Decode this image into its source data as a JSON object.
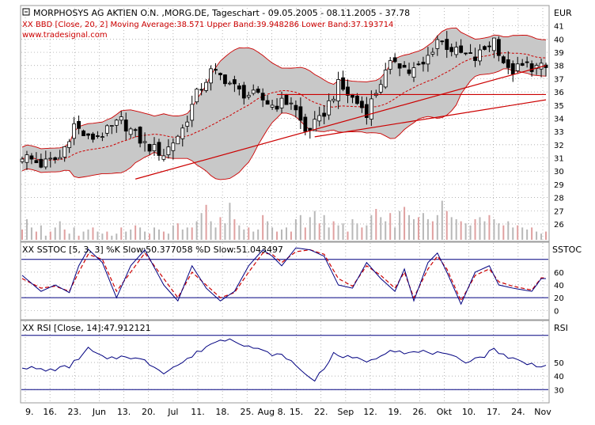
{
  "header": {
    "main_title": "MORPHOSYS AG AKTIEN O.N. ,MORG.DE, Tageschart - 09.05.2005 - 08.11.2005 - 37.78",
    "bb_info": "XX BBD [Close, 20, 2] Moving Average:38.571 Upper Band:39.948286 Lower Band:37.193714",
    "site": "www.tradesignal.com"
  },
  "labels": {
    "currency": "EUR",
    "sstoc": "SSTOC",
    "rsi": "RSI"
  },
  "colors": {
    "band_fill": "#c8c8c8",
    "ma": "#cc0000",
    "trendline": "#cc0000",
    "k_line": "#000080",
    "d_line": "#cc0000",
    "rsi_line": "#000080",
    "grid": "#9a9a9a"
  },
  "chart_data": [
    {
      "type": "candlestick",
      "panel": "price",
      "title": "MORPHOSYS AG AKTIEN O.N. ,MORG.DE, Tageschart - 09.05.2005 - 08.11.2005 - 37.78",
      "ylabel": "EUR",
      "ylim": [
        24.8,
        42.3
      ],
      "yticks": [
        26,
        27,
        28,
        29,
        30,
        31,
        32,
        33,
        34,
        35,
        36,
        37,
        38,
        39,
        40,
        41
      ],
      "x_categories": [
        "9.",
        "16.",
        "23.",
        "Jun",
        "13.",
        "20.",
        "Jul",
        "11.",
        "18.",
        "25.",
        "Aug 8.",
        "15.",
        "22.",
        "Sep",
        "12.",
        "19.",
        "26.",
        "Okt",
        "10.",
        "17.",
        "24.",
        "Nov"
      ],
      "close_anchors": [
        [
          0,
          31.2
        ],
        [
          4,
          30.5
        ],
        [
          8,
          31.0
        ],
        [
          11,
          33.5
        ],
        [
          14,
          32.4
        ],
        [
          18,
          33.0
        ],
        [
          21,
          33.8
        ],
        [
          26,
          32.0
        ],
        [
          30,
          31.3
        ],
        [
          34,
          33.2
        ],
        [
          37,
          35.8
        ],
        [
          40,
          37.5
        ],
        [
          43,
          37.0
        ],
        [
          46,
          36.0
        ],
        [
          50,
          35.6
        ],
        [
          53,
          35.0
        ],
        [
          57,
          35.3
        ],
        [
          60,
          33.0
        ],
        [
          63,
          33.8
        ],
        [
          67,
          36.5
        ],
        [
          70,
          35.5
        ],
        [
          73,
          34.5
        ],
        [
          76,
          36.8
        ],
        [
          79,
          38.5
        ],
        [
          82,
          37.5
        ],
        [
          85,
          38.0
        ],
        [
          88,
          40.0
        ],
        [
          92,
          39.0
        ],
        [
          96,
          38.5
        ],
        [
          100,
          40.0
        ],
        [
          103,
          37.5
        ],
        [
          107,
          38.0
        ],
        [
          110,
          37.78
        ]
      ],
      "bollinger": {
        "period": 20,
        "stddev": 2,
        "moving_average": 38.571,
        "upper_band": 39.948286,
        "lower_band": 37.193714
      },
      "trendlines": [
        {
          "from": [
            24,
            29.4
          ],
          "to": [
            111,
            38.0
          ]
        },
        {
          "from": [
            62,
            32.6
          ],
          "to": [
            111,
            35.4
          ]
        },
        {
          "from": [
            54,
            35.8
          ],
          "to": [
            111,
            35.8
          ]
        }
      ],
      "volume_relative": [
        0.25,
        0.5,
        0.3,
        0.2,
        0.35,
        0.1,
        0.2,
        0.3,
        0.45,
        0.25,
        0.15,
        0.3,
        0.1,
        0.2,
        0.25,
        0.3,
        0.2,
        0.15,
        0.2,
        0.1,
        0.15,
        0.3,
        0.2,
        0.25,
        0.35,
        0.3,
        0.2,
        0.15,
        0.3,
        0.25,
        0.2,
        0.15,
        0.35,
        0.4,
        0.25,
        0.3,
        0.3,
        0.45,
        0.65,
        0.85,
        0.45,
        0.3,
        0.55,
        0.4,
        0.9,
        0.5,
        0.35,
        0.25,
        0.3,
        0.2,
        0.25,
        0.6,
        0.45,
        0.3,
        0.2,
        0.25,
        0.3,
        0.2,
        0.5,
        0.6,
        0.3,
        0.55,
        0.7,
        0.4,
        0.6,
        0.3,
        0.45,
        0.35,
        0.4,
        0.2,
        0.5,
        0.4,
        0.3,
        0.35,
        0.6,
        0.75,
        0.55,
        0.45,
        0.65,
        0.3,
        0.7,
        0.8,
        0.6,
        0.5,
        0.55,
        0.65,
        0.5,
        0.45,
        0.6,
        0.95,
        0.7,
        0.55,
        0.5,
        0.45,
        0.4,
        0.35,
        0.5,
        0.55,
        0.45,
        0.6,
        0.5,
        0.4,
        0.35,
        0.45,
        0.3,
        0.35,
        0.3,
        0.25,
        0.3,
        0.2,
        0.15,
        0.2
      ]
    },
    {
      "type": "line",
      "panel": "sstoc",
      "title": "XX SSTOC [5, 3, 3] %K Slow:50.377058 %D Slow:51.043497",
      "ylabel": "SSTOC",
      "ylim": [
        -12,
        102
      ],
      "yticks": [
        0,
        20,
        40,
        60
      ],
      "levels": [
        20,
        80
      ],
      "series": [
        {
          "name": "%K Slow",
          "last": 50.377058,
          "anchors": [
            [
              0,
              55
            ],
            [
              4,
              30
            ],
            [
              7,
              40
            ],
            [
              10,
              28
            ],
            [
              12,
              70
            ],
            [
              14,
              96
            ],
            [
              17,
              75
            ],
            [
              20,
              20
            ],
            [
              23,
              70
            ],
            [
              26,
              95
            ],
            [
              30,
              40
            ],
            [
              33,
              15
            ],
            [
              36,
              70
            ],
            [
              39,
              35
            ],
            [
              42,
              15
            ],
            [
              45,
              30
            ],
            [
              48,
              70
            ],
            [
              51,
              95
            ],
            [
              53,
              85
            ],
            [
              55,
              70
            ],
            [
              58,
              98
            ],
            [
              61,
              95
            ],
            [
              64,
              85
            ],
            [
              67,
              40
            ],
            [
              70,
              35
            ],
            [
              73,
              75
            ],
            [
              76,
              50
            ],
            [
              79,
              30
            ],
            [
              81,
              65
            ],
            [
              83,
              15
            ],
            [
              86,
              75
            ],
            [
              88,
              90
            ],
            [
              90,
              60
            ],
            [
              93,
              10
            ],
            [
              96,
              60
            ],
            [
              99,
              70
            ],
            [
              101,
              40
            ],
            [
              104,
              35
            ],
            [
              108,
              30
            ],
            [
              110,
              50
            ]
          ]
        },
        {
          "name": "%D Slow",
          "last": 51.043497,
          "anchors": [
            [
              0,
              50
            ],
            [
              4,
              35
            ],
            [
              7,
              38
            ],
            [
              10,
              30
            ],
            [
              12,
              60
            ],
            [
              14,
              88
            ],
            [
              17,
              80
            ],
            [
              20,
              30
            ],
            [
              23,
              60
            ],
            [
              26,
              90
            ],
            [
              30,
              50
            ],
            [
              33,
              20
            ],
            [
              36,
              60
            ],
            [
              39,
              40
            ],
            [
              42,
              20
            ],
            [
              45,
              28
            ],
            [
              48,
              60
            ],
            [
              51,
              90
            ],
            [
              53,
              88
            ],
            [
              55,
              75
            ],
            [
              58,
              92
            ],
            [
              61,
              95
            ],
            [
              64,
              88
            ],
            [
              67,
              50
            ],
            [
              70,
              38
            ],
            [
              73,
              70
            ],
            [
              76,
              55
            ],
            [
              79,
              35
            ],
            [
              81,
              60
            ],
            [
              83,
              20
            ],
            [
              86,
              65
            ],
            [
              88,
              85
            ],
            [
              90,
              65
            ],
            [
              93,
              15
            ],
            [
              96,
              55
            ],
            [
              99,
              65
            ],
            [
              101,
              45
            ],
            [
              104,
              38
            ],
            [
              108,
              32
            ],
            [
              110,
              51
            ]
          ]
        }
      ]
    },
    {
      "type": "line",
      "panel": "rsi",
      "title": "XX RSI [Close, 14]:47.912121",
      "ylabel": "RSI",
      "ylim": [
        22,
        78
      ],
      "yticks": [
        30,
        40,
        50
      ],
      "levels": [
        30,
        70
      ],
      "series": [
        {
          "name": "RSI",
          "last": 47.912121,
          "anchors": [
            [
              0,
              47
            ],
            [
              5,
              44
            ],
            [
              10,
              47
            ],
            [
              14,
              60
            ],
            [
              18,
              52
            ],
            [
              22,
              55
            ],
            [
              26,
              51
            ],
            [
              30,
              43
            ],
            [
              34,
              50
            ],
            [
              37,
              57
            ],
            [
              40,
              64
            ],
            [
              44,
              68
            ],
            [
              48,
              62
            ],
            [
              52,
              57
            ],
            [
              56,
              54
            ],
            [
              59,
              44
            ],
            [
              62,
              37
            ],
            [
              66,
              56
            ],
            [
              70,
              53
            ],
            [
              74,
              51
            ],
            [
              78,
              60
            ],
            [
              82,
              57
            ],
            [
              86,
              58
            ],
            [
              90,
              55
            ],
            [
              94,
              51
            ],
            [
              98,
              55
            ],
            [
              100,
              60
            ],
            [
              103,
              54
            ],
            [
              107,
              49
            ],
            [
              110,
              47.9
            ]
          ]
        }
      ]
    }
  ]
}
